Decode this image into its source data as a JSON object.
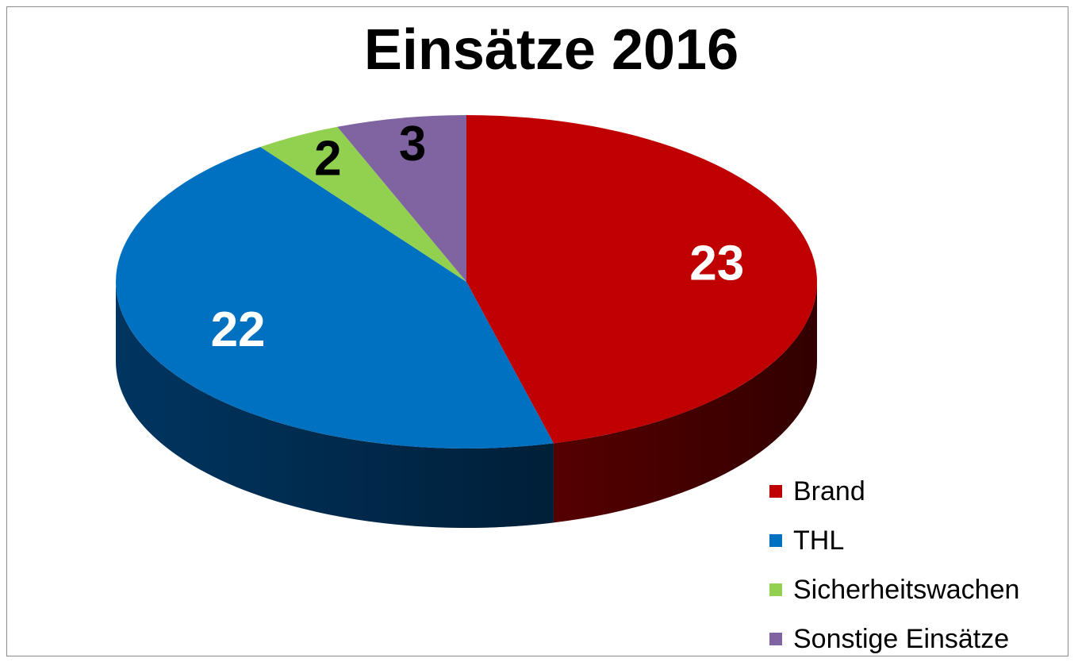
{
  "chart_data": {
    "type": "pie",
    "title": "Einsätze 2016",
    "categories": [
      "Brand",
      "THL",
      "Sicherheitswachen",
      "Sonstige Einsätze"
    ],
    "values": [
      23,
      22,
      2,
      3
    ],
    "colors": [
      "#c00000",
      "#0070c0",
      "#92d050",
      "#8064a2"
    ],
    "side_colors": [
      "#5a0000",
      "#003866",
      "#4c7a1e",
      "#3f2f57"
    ],
    "label_colors": [
      "#ffffff",
      "#ffffff",
      "#000000",
      "#000000"
    ],
    "legend_position": "bottom-right",
    "style": "3d-pie"
  }
}
